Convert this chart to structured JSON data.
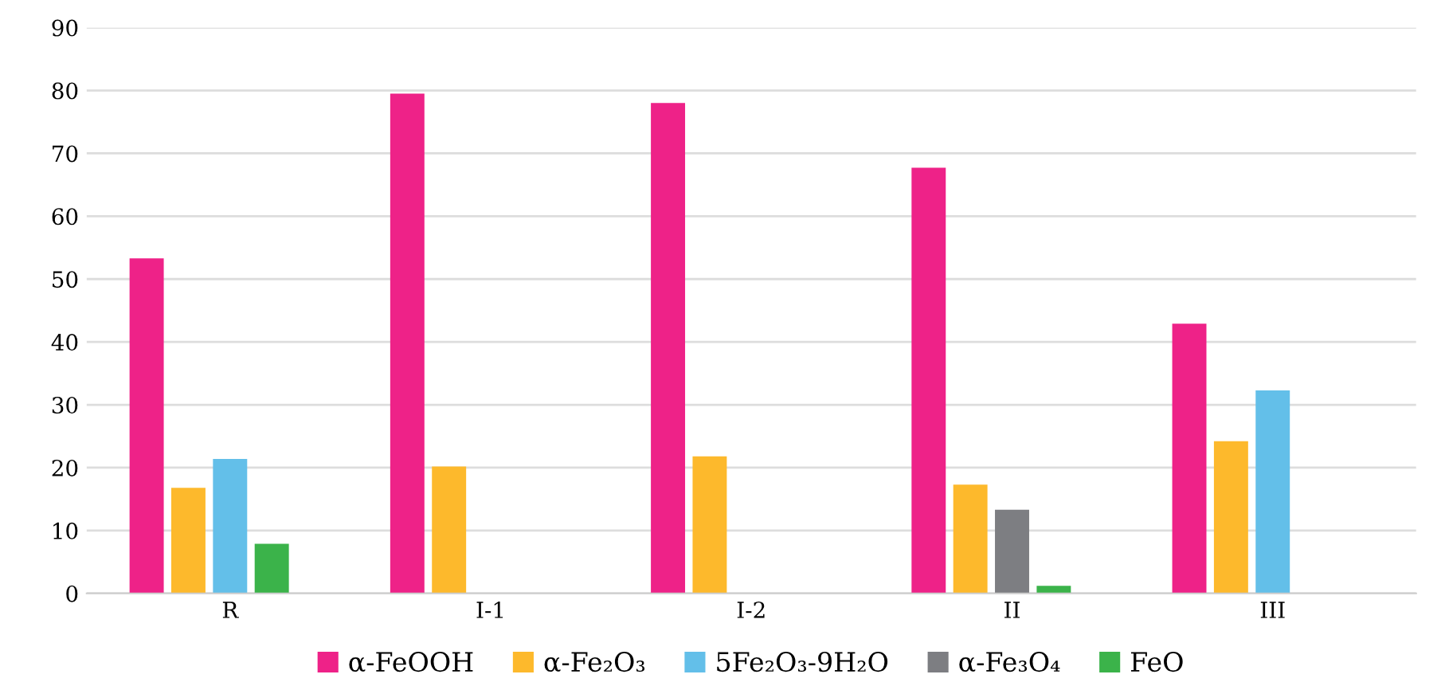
{
  "chart_data": {
    "type": "bar",
    "categories": [
      "R",
      "I-1",
      "I-2",
      "II",
      "III"
    ],
    "series": [
      {
        "name": "α-FeOOH",
        "color": "#ee2288",
        "values": [
          53.3,
          79.5,
          78.0,
          67.7,
          42.9
        ]
      },
      {
        "name": "α-Fe₂O₃",
        "color": "#fdb92c",
        "values": [
          16.8,
          20.2,
          21.8,
          17.3,
          24.2
        ]
      },
      {
        "name": "5Fe₂O₃-9H₂O",
        "color": "#63bfe9",
        "values": [
          21.4,
          null,
          null,
          null,
          32.3
        ]
      },
      {
        "name": "α-Fe₃O₄",
        "color": "#7d7e82",
        "values": [
          null,
          null,
          null,
          13.3,
          null
        ]
      },
      {
        "name": "FeO",
        "color": "#3bb34a",
        "values": [
          7.9,
          null,
          null,
          1.2,
          null
        ]
      }
    ],
    "ylim": [
      0,
      90
    ],
    "yticks": [
      0,
      10,
      20,
      30,
      40,
      50,
      60,
      70,
      80,
      90
    ],
    "grid": "y",
    "legend": "bottom"
  }
}
